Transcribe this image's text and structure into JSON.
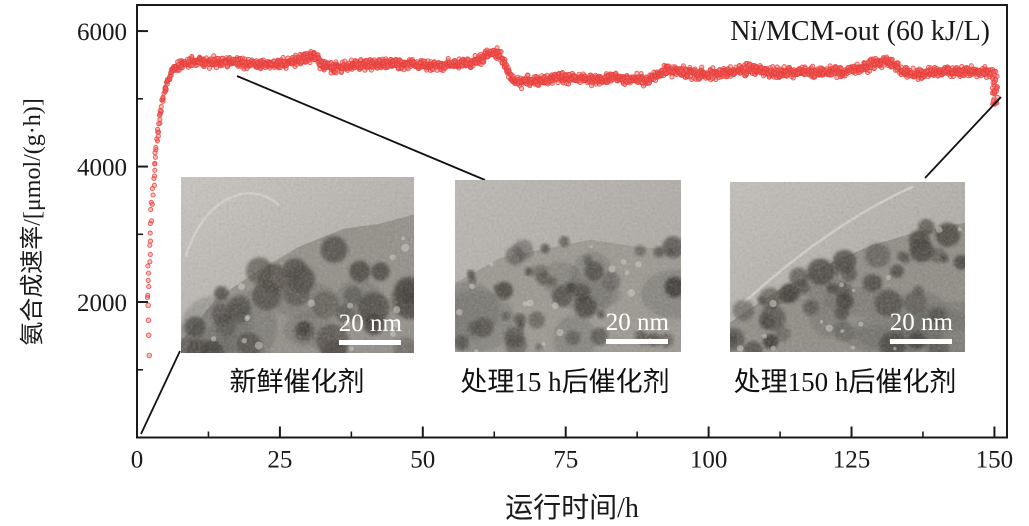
{
  "figure": {
    "series_label": "Ni/MCM-out (60 kJ/L)"
  },
  "chart_data": {
    "type": "scatter",
    "title": "",
    "series_label": "Ni/MCM-out (60 kJ/L)",
    "xlabel": "运行时间/h",
    "ylabel": "氨合成速率/[μmol/(g·h)]",
    "xlim": [
      0,
      152.2
    ],
    "ylim": [
      0,
      6385
    ],
    "x_major_ticks": [
      0,
      25,
      50,
      75,
      100,
      125,
      150
    ],
    "x_minor_ticks": [
      12.5,
      37.5,
      62.5,
      87.5,
      112.5,
      137.5
    ],
    "y_major_ticks": [
      2000,
      4000,
      6000
    ],
    "y_minor_ticks": [
      1000,
      3000,
      5000
    ],
    "legend_position": "top-right",
    "grid": false,
    "point_color": "#e8403c",
    "point_fill": "#f26b65",
    "band_halfwidth": 112,
    "trend_anchors": [
      [
        1.8,
        2050
      ],
      [
        2.0,
        2400
      ],
      [
        2.3,
        2900
      ],
      [
        2.6,
        3400
      ],
      [
        3.0,
        3900
      ],
      [
        3.5,
        4400
      ],
      [
        4.0,
        4750
      ],
      [
        4.5,
        5000
      ],
      [
        5.0,
        5180
      ],
      [
        5.5,
        5300
      ],
      [
        6.0,
        5390
      ],
      [
        7.0,
        5470
      ],
      [
        8.0,
        5510
      ],
      [
        10,
        5540
      ],
      [
        13,
        5545
      ],
      [
        16,
        5540
      ],
      [
        19,
        5530
      ],
      [
        22,
        5510
      ],
      [
        25,
        5520
      ],
      [
        27,
        5545
      ],
      [
        29,
        5600
      ],
      [
        30.5,
        5640
      ],
      [
        31.5,
        5600
      ],
      [
        32.5,
        5500
      ],
      [
        33.5,
        5450
      ],
      [
        35,
        5470
      ],
      [
        37,
        5490
      ],
      [
        40,
        5510
      ],
      [
        44,
        5520
      ],
      [
        48,
        5515
      ],
      [
        52,
        5490
      ],
      [
        55,
        5500
      ],
      [
        58,
        5530
      ],
      [
        60,
        5580
      ],
      [
        61.5,
        5650
      ],
      [
        62.5,
        5680
      ],
      [
        63.5,
        5640
      ],
      [
        64.5,
        5480
      ],
      [
        65.5,
        5290
      ],
      [
        67,
        5250
      ],
      [
        69,
        5260
      ],
      [
        72,
        5290
      ],
      [
        75,
        5310
      ],
      [
        78,
        5290
      ],
      [
        81,
        5280
      ],
      [
        84,
        5310
      ],
      [
        87,
        5290
      ],
      [
        89.5,
        5280
      ],
      [
        91,
        5360
      ],
      [
        93,
        5430
      ],
      [
        95,
        5410
      ],
      [
        97,
        5360
      ],
      [
        100,
        5370
      ],
      [
        103,
        5390
      ],
      [
        106,
        5430
      ],
      [
        108,
        5440
      ],
      [
        110,
        5400
      ],
      [
        112,
        5380
      ],
      [
        114,
        5390
      ],
      [
        116,
        5410
      ],
      [
        118,
        5400
      ],
      [
        121,
        5390
      ],
      [
        124,
        5410
      ],
      [
        127,
        5460
      ],
      [
        129,
        5520
      ],
      [
        131,
        5560
      ],
      [
        132.5,
        5500
      ],
      [
        134,
        5400
      ],
      [
        136,
        5360
      ],
      [
        138,
        5380
      ],
      [
        141,
        5400
      ],
      [
        144,
        5410
      ],
      [
        147,
        5400
      ],
      [
        149,
        5390
      ],
      [
        150,
        5380
      ]
    ],
    "startup_points": [
      [
        1.95,
        1950
      ],
      [
        2.0,
        1730
      ],
      [
        2.05,
        1510
      ],
      [
        2.15,
        1210
      ]
    ],
    "end_drop": {
      "t_start": 149.6,
      "t_end": 150.6,
      "v_low": 4920,
      "v_high": 5450
    }
  },
  "insets": [
    {
      "caption": "新鲜催化剂",
      "scale_label": "20 nm"
    },
    {
      "caption": "处理15 h后催化剂",
      "scale_label": "20 nm"
    },
    {
      "caption": "处理150 h后催化剂",
      "scale_label": "20 nm"
    }
  ]
}
